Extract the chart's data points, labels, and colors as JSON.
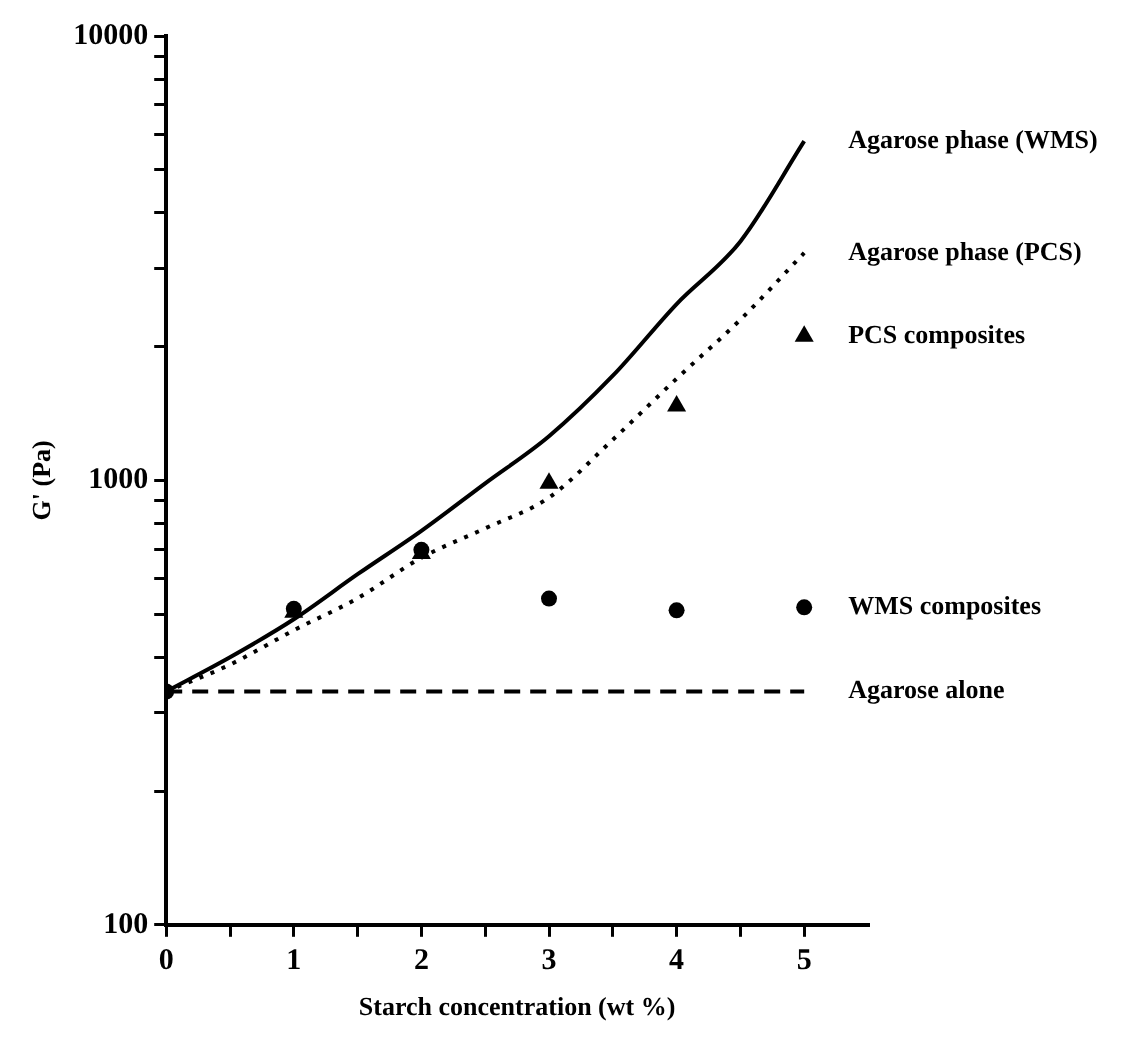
{
  "chart_data": {
    "type": "line",
    "xlabel": "Starch concentration (wt %)",
    "ylabel": "G' (Pa)",
    "log": "y",
    "grid": false,
    "legend": false,
    "xlim": [
      0,
      5.5
    ],
    "xticks": [
      0,
      {
        "value": 0.5,
        "label": null
      },
      1,
      {
        "value": 1.5,
        "label": null
      },
      2,
      {
        "value": 2.5,
        "label": null
      },
      3,
      {
        "value": 3.5,
        "label": null
      },
      4,
      {
        "value": 4.5,
        "label": null
      },
      5
    ],
    "ylim": [
      100,
      10000
    ],
    "yticks": [
      100,
      {
        "value": 200,
        "label": null
      },
      {
        "value": 300,
        "label": null
      },
      {
        "value": 400,
        "label": null
      },
      {
        "value": 500,
        "label": null
      },
      {
        "value": 600,
        "label": null
      },
      {
        "value": 700,
        "label": null
      },
      {
        "value": 800,
        "label": null
      },
      {
        "value": 900,
        "label": null
      },
      1000,
      {
        "value": 2000,
        "label": null
      },
      {
        "value": 3000,
        "label": null
      },
      {
        "value": 4000,
        "label": null
      },
      {
        "value": 5000,
        "label": null
      },
      {
        "value": 6000,
        "label": null
      },
      {
        "value": 7000,
        "label": null
      },
      {
        "value": 8000,
        "label": null
      },
      {
        "value": 9000,
        "label": null
      },
      10000
    ],
    "series": [
      {
        "name": "Agarose phase (WMS)",
        "type": "line",
        "color": "#000000",
        "marker": "none",
        "line_style": "solid",
        "x": [
          0,
          0.5,
          1,
          1.5,
          2,
          2.5,
          3,
          3.5,
          4,
          4.5,
          5
        ],
        "values": [
          335,
          400,
          487,
          615,
          770,
          985,
          1257,
          1720,
          2494,
          3450,
          5800
        ]
      },
      {
        "name": "Agarose phase (PCS)",
        "type": "line",
        "color": "#000000",
        "marker": "none",
        "line_style": "dotted",
        "x": [
          0,
          0.5,
          1,
          1.5,
          2,
          2.5,
          3,
          3.5,
          4,
          4.5,
          5
        ],
        "values": [
          335,
          385,
          460,
          543,
          670,
          780,
          915,
          1235,
          1694,
          2300,
          3250
        ]
      },
      {
        "name": "PCS composites",
        "type": "scatter",
        "color": "#000000",
        "marker": "triangle",
        "x": [
          1,
          2,
          3,
          4,
          5
        ],
        "values": [
          505,
          685,
          985,
          1470,
          2110
        ]
      },
      {
        "name": "WMS composites",
        "type": "scatter",
        "color": "#000000",
        "marker": "circle",
        "x": [
          0,
          1,
          2,
          3,
          4,
          5
        ],
        "values": [
          335,
          514,
          698,
          542,
          510,
          518
        ]
      },
      {
        "name": "Agarose alone",
        "type": "line",
        "color": "#000000",
        "marker": "none",
        "line_style": "dashed",
        "x": [
          0,
          5
        ],
        "values": [
          335,
          335
        ]
      }
    ]
  }
}
